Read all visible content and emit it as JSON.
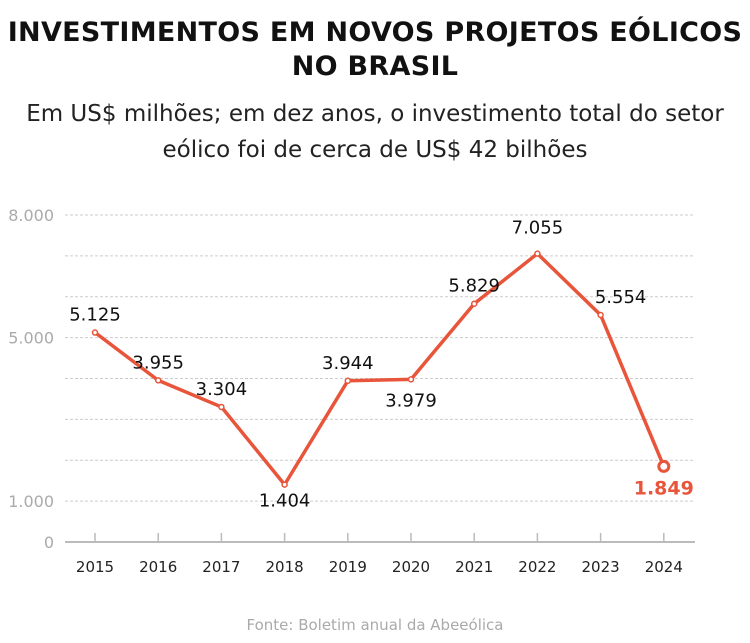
{
  "chart_data": {
    "type": "line",
    "title": "INVESTIMENTOS EM NOVOS PROJETOS EÓLICOS NO BRASIL",
    "subtitle": "Em US$ milhões; em dez anos, o investimento total do setor eólico foi de cerca de US$ 42 bilhões",
    "categories": [
      "2015",
      "2016",
      "2017",
      "2018",
      "2019",
      "2020",
      "2021",
      "2022",
      "2023",
      "2024"
    ],
    "values": [
      5125,
      3955,
      3304,
      1404,
      3944,
      3979,
      5829,
      7055,
      5554,
      1849
    ],
    "data_labels": [
      "5.125",
      "3.955",
      "3.304",
      "1.404",
      "3.944",
      "3.979",
      "5.829",
      "7.055",
      "5.554",
      "1.849"
    ],
    "yticks": [
      {
        "value": 0,
        "label": "0"
      },
      {
        "value": 1000,
        "label": "1.000"
      },
      {
        "value": 5000,
        "label": "5.000"
      },
      {
        "value": 8000,
        "label": "8.000"
      }
    ],
    "ylim": [
      0,
      8000
    ],
    "grid": true,
    "line_color": "#e8553a",
    "highlight_color": "#e8553a",
    "source": "Fonte: Boletim anual da Abeeólica"
  }
}
